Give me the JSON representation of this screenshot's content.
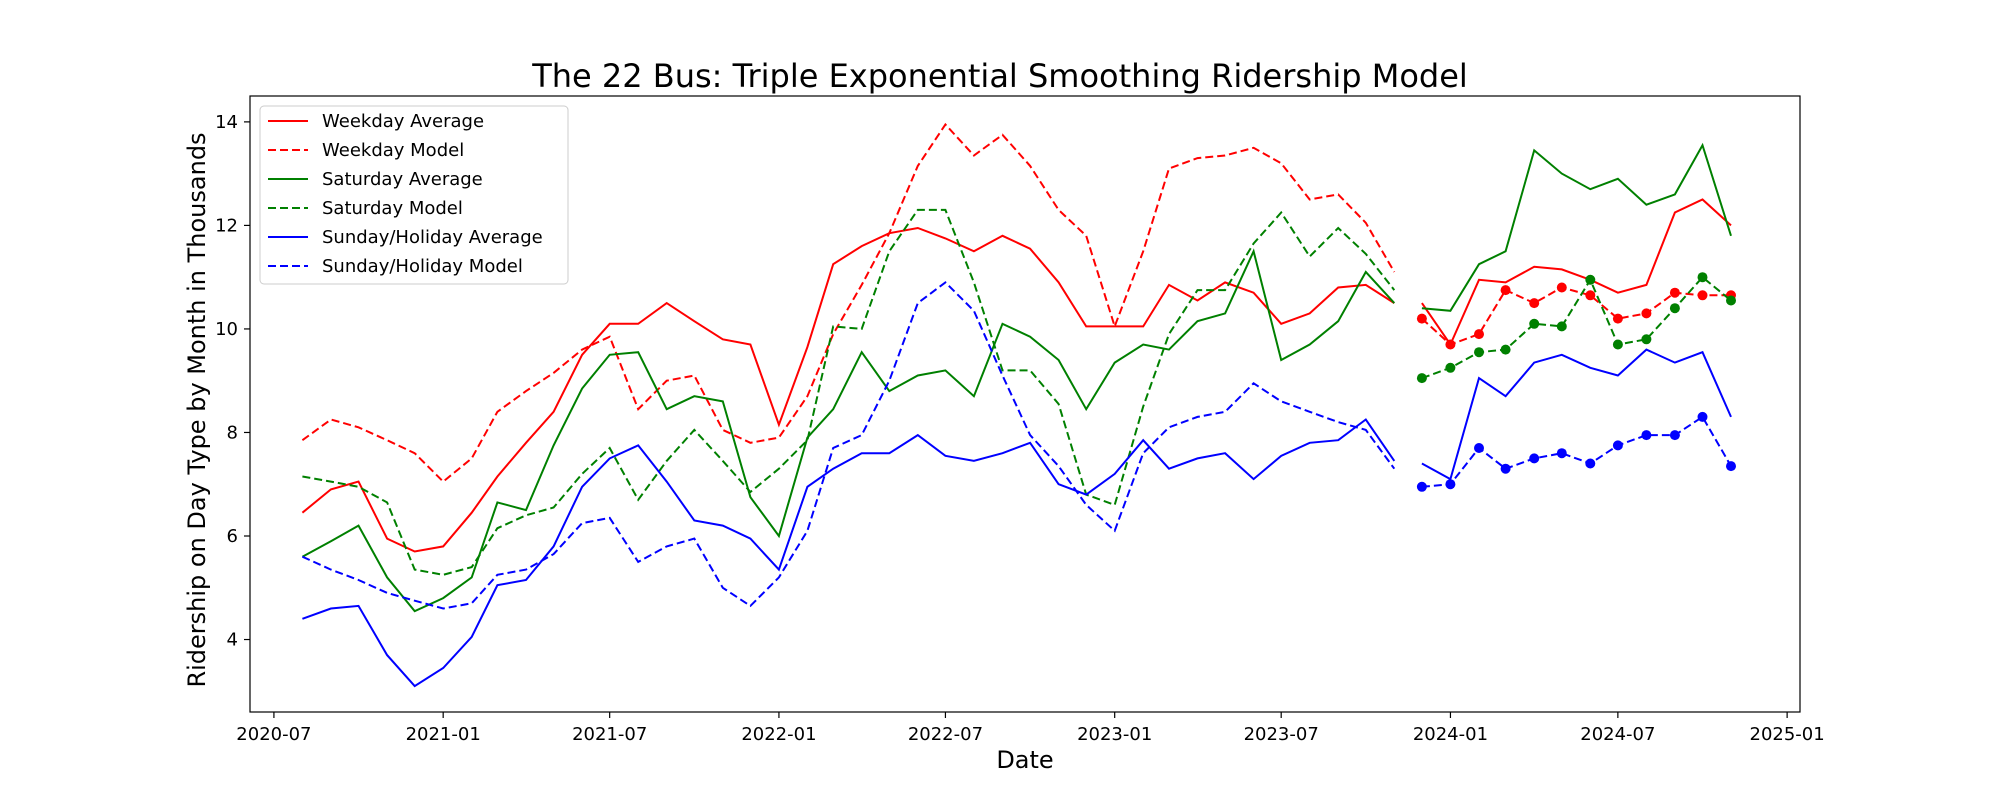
{
  "chart_data": {
    "type": "line",
    "title": "The 22 Bus: Triple Exponential Smoothing Ridership Model",
    "xlabel": "Date",
    "ylabel": "Ridership on Day Type by Month in Thousands",
    "xlim": [
      "2020-06-05",
      "2025-01-15"
    ],
    "ylim": [
      2.6,
      14.5
    ],
    "x_ticks": [
      "2020-07-01",
      "2021-01-01",
      "2021-07-01",
      "2022-01-01",
      "2022-07-01",
      "2023-01-01",
      "2023-07-01",
      "2024-01-01",
      "2024-07-01",
      "2025-01-01"
    ],
    "x_tick_labels": [
      "2020-07",
      "2021-01",
      "2021-07",
      "2022-01",
      "2022-07",
      "2023-01",
      "2023-07",
      "2024-01",
      "2024-07",
      "2025-01"
    ],
    "y_ticks": [
      4,
      6,
      8,
      10,
      12,
      14
    ],
    "y_tick_labels": [
      "4",
      "6",
      "8",
      "10",
      "12",
      "14"
    ],
    "grid": false,
    "legend_position": "top-left",
    "dates_history": [
      "2020-08-01",
      "2020-09-01",
      "2020-10-01",
      "2020-11-01",
      "2020-12-01",
      "2021-01-01",
      "2021-02-01",
      "2021-03-01",
      "2021-04-01",
      "2021-05-01",
      "2021-06-01",
      "2021-07-01",
      "2021-08-01",
      "2021-09-01",
      "2021-10-01",
      "2021-11-01",
      "2021-12-01",
      "2022-01-01",
      "2022-02-01",
      "2022-03-01",
      "2022-04-01",
      "2022-05-01",
      "2022-06-01",
      "2022-07-01",
      "2022-08-01",
      "2022-09-01",
      "2022-10-01",
      "2022-11-01",
      "2022-12-01",
      "2023-01-01",
      "2023-02-01",
      "2023-03-01",
      "2023-04-01",
      "2023-05-01",
      "2023-06-01",
      "2023-07-01",
      "2023-08-01",
      "2023-09-01",
      "2023-10-01",
      "2023-11-01"
    ],
    "dates_test": [
      "2023-12-01",
      "2024-01-01",
      "2024-02-01",
      "2024-03-01",
      "2024-04-01",
      "2024-05-01",
      "2024-06-01",
      "2024-07-01",
      "2024-08-01",
      "2024-09-01",
      "2024-10-01",
      "2024-11-01"
    ],
    "series": [
      {
        "name": "Weekday Average",
        "color": "#ff0000",
        "style": "solid",
        "in_legend": true,
        "history": [
          6.45,
          6.9,
          7.05,
          5.95,
          5.7,
          5.8,
          6.45,
          7.15,
          7.8,
          8.4,
          9.5,
          10.1,
          10.1,
          10.5,
          10.15,
          9.8,
          9.7,
          8.15,
          9.65,
          11.25,
          11.6,
          11.85,
          11.95,
          11.75,
          11.5,
          11.8,
          11.55,
          10.9,
          10.05,
          10.05,
          10.05,
          10.85,
          10.55,
          10.9,
          10.7,
          10.1,
          10.3,
          10.8,
          10.85,
          10.5
        ],
        "test": [
          10.5,
          9.7,
          10.95,
          10.9,
          11.2,
          11.15,
          10.95,
          10.7,
          10.85,
          12.25,
          12.5,
          12.0
        ],
        "test_markers": false
      },
      {
        "name": "Weekday Model",
        "color": "#ff0000",
        "style": "dashed",
        "in_legend": true,
        "history": [
          7.85,
          8.25,
          8.1,
          7.85,
          7.6,
          7.05,
          7.5,
          8.4,
          8.8,
          9.15,
          9.6,
          9.85,
          8.45,
          9.0,
          9.1,
          8.05,
          7.8,
          7.9,
          8.7,
          9.9,
          10.85,
          11.85,
          13.15,
          13.95,
          13.35,
          13.75,
          13.15,
          12.3,
          11.8,
          10.05,
          11.5,
          13.1,
          13.3,
          13.35,
          13.5,
          13.2,
          12.5,
          12.6,
          12.05,
          11.1
        ],
        "test": [
          10.2,
          9.7,
          9.9,
          10.75,
          10.5,
          10.8,
          10.65,
          10.2,
          10.3,
          10.7,
          10.65,
          10.65
        ],
        "test_markers": true
      },
      {
        "name": "Saturday Average",
        "color": "#008000",
        "style": "solid",
        "in_legend": true,
        "history": [
          5.6,
          5.9,
          6.2,
          5.2,
          4.55,
          4.8,
          5.2,
          6.65,
          6.5,
          7.75,
          8.85,
          9.5,
          9.55,
          8.45,
          8.7,
          8.6,
          6.75,
          6.0,
          7.9,
          8.45,
          9.55,
          8.8,
          9.1,
          9.2,
          8.7,
          10.1,
          9.85,
          9.4,
          8.45,
          9.35,
          9.7,
          9.6,
          10.15,
          10.3,
          11.5,
          9.4,
          9.7,
          10.15,
          11.1,
          10.5
        ],
        "test": [
          10.4,
          10.35,
          11.25,
          11.5,
          13.45,
          13.0,
          12.7,
          12.9,
          12.4,
          12.6,
          13.55,
          11.8
        ],
        "test_markers": false
      },
      {
        "name": "Saturday Model",
        "color": "#008000",
        "style": "dashed",
        "in_legend": true,
        "history": [
          7.15,
          7.05,
          6.95,
          6.65,
          5.35,
          5.25,
          5.4,
          6.15,
          6.4,
          6.55,
          7.2,
          7.7,
          6.7,
          7.45,
          8.05,
          7.45,
          6.85,
          7.3,
          7.85,
          10.05,
          10.0,
          11.5,
          12.3,
          12.3,
          10.9,
          9.2,
          9.2,
          8.55,
          6.8,
          6.6,
          8.5,
          9.9,
          10.75,
          10.75,
          11.65,
          12.25,
          11.4,
          11.95,
          11.45,
          10.75
        ],
        "test": [
          9.05,
          9.25,
          9.55,
          9.6,
          10.1,
          10.05,
          10.95,
          9.7,
          9.8,
          10.4,
          11.0,
          10.55
        ],
        "test_markers": true
      },
      {
        "name": "Sunday/Holiday Average",
        "color": "#0000ff",
        "style": "solid",
        "in_legend": true,
        "history": [
          4.4,
          4.6,
          4.65,
          3.7,
          3.1,
          3.45,
          4.05,
          5.05,
          5.15,
          5.8,
          6.95,
          7.5,
          7.75,
          7.05,
          6.3,
          6.2,
          5.95,
          5.35,
          6.95,
          7.3,
          7.6,
          7.6,
          7.95,
          7.55,
          7.45,
          7.6,
          7.8,
          7.0,
          6.8,
          7.2,
          7.85,
          7.3,
          7.5,
          7.6,
          7.1,
          7.55,
          7.8,
          7.85,
          8.25,
          7.45
        ],
        "test": [
          7.4,
          7.1,
          9.05,
          8.7,
          9.35,
          9.5,
          9.25,
          9.1,
          9.6,
          9.35,
          9.55,
          8.3
        ],
        "test_markers": false
      },
      {
        "name": "Sunday/Holiday Model",
        "color": "#0000ff",
        "style": "dashed",
        "in_legend": true,
        "history": [
          5.6,
          5.35,
          5.15,
          4.9,
          4.75,
          4.6,
          4.7,
          5.25,
          5.35,
          5.65,
          6.25,
          6.35,
          5.5,
          5.8,
          5.95,
          5.0,
          4.65,
          5.2,
          6.1,
          7.7,
          7.95,
          9.0,
          10.5,
          10.9,
          10.35,
          9.1,
          7.95,
          7.35,
          6.6,
          6.1,
          7.6,
          8.1,
          8.3,
          8.4,
          8.95,
          8.6,
          8.4,
          8.2,
          8.05,
          7.3
        ],
        "test": [
          6.95,
          7.0,
          7.7,
          7.3,
          7.5,
          7.6,
          7.4,
          7.75,
          7.95,
          7.95,
          8.3,
          7.35
        ],
        "test_markers": true
      }
    ]
  }
}
